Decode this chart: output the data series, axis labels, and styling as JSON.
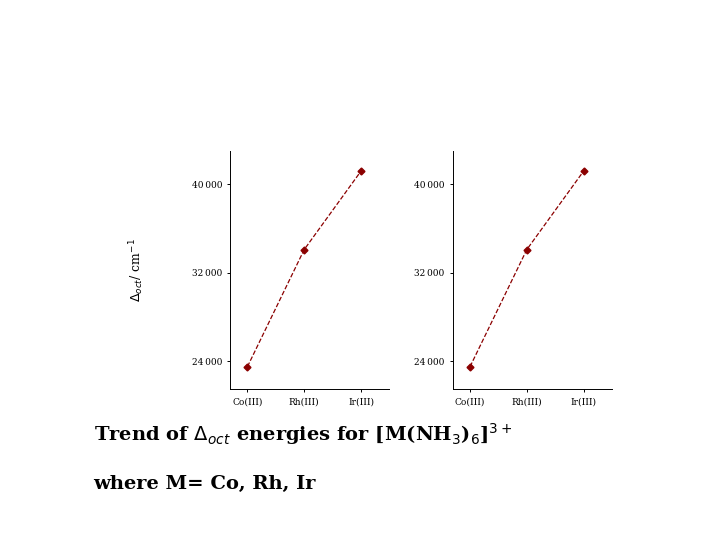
{
  "x_labels": [
    "Co(III)",
    "Rh(III)",
    "Ir(III)"
  ],
  "x_positions": [
    0,
    1,
    2
  ],
  "y_values": [
    23500,
    34100,
    41200
  ],
  "line_color": "#8B0000",
  "marker": "D",
  "marker_size": 3.5,
  "linestyle": "--",
  "linewidth": 0.9,
  "yticks": [
    24000,
    32000,
    40000
  ],
  "ylim": [
    21500,
    43000
  ],
  "xlim": [
    -0.3,
    2.5
  ],
  "background_color": "#ffffff",
  "tick_fontsize": 6.5,
  "ylabel_fontsize": 9,
  "caption_fontsize": 14
}
